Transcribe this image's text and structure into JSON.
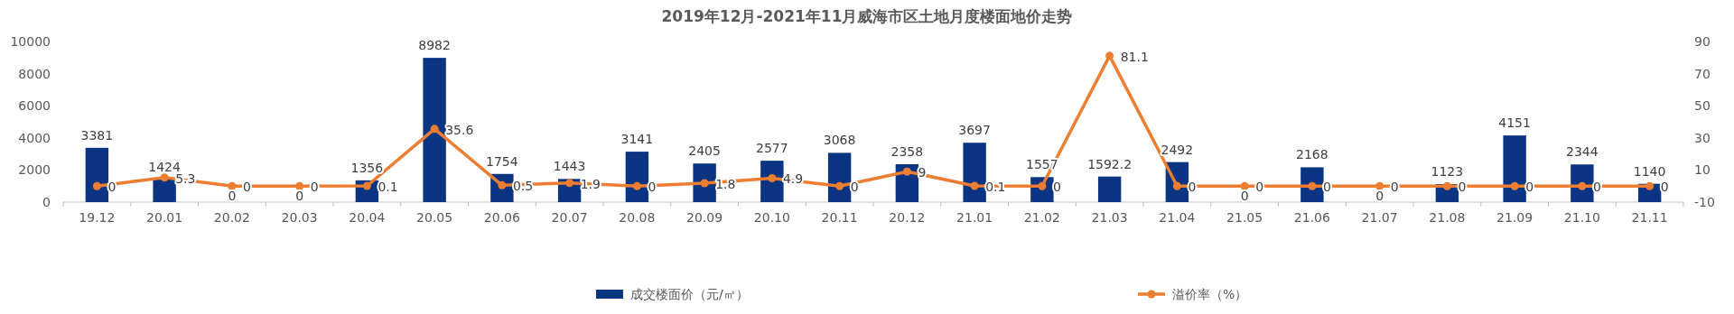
{
  "chart_data": {
    "type": "bar",
    "title": "2019年12月-2021年11月威海市区土地月度楼面地价走势",
    "categories": [
      "19.12",
      "20.01",
      "20.02",
      "20.03",
      "20.04",
      "20.05",
      "20.06",
      "20.07",
      "20.08",
      "20.09",
      "20.10",
      "20.11",
      "20.12",
      "21.01",
      "21.02",
      "21.03",
      "21.04",
      "21.05",
      "21.06",
      "21.07",
      "21.08",
      "21.09",
      "21.10",
      "21.11"
    ],
    "series": [
      {
        "name": "成交楼面价（元/㎡）",
        "color": "#0b3483",
        "values": [
          3381,
          1424,
          0,
          0,
          1356,
          8982,
          1754,
          1443,
          3141,
          2405,
          2577,
          3068,
          2358,
          3697,
          1557,
          1592.2,
          2492,
          0,
          2168,
          0,
          1123,
          4151,
          2344,
          1140
        ]
      },
      {
        "name": "溢价率（%）",
        "type": "line",
        "axis": "y2",
        "color": "#ed7d31",
        "marker": "circle",
        "values": [
          0,
          5.3,
          0,
          0,
          0.1,
          35.6,
          0.5,
          1.9,
          0,
          1.8,
          4.9,
          0,
          9,
          0.1,
          0,
          81.1,
          0,
          0,
          0,
          0,
          0,
          0,
          0,
          0
        ]
      }
    ],
    "ylim": [
      0,
      10000
    ],
    "yticks": [
      0,
      2000,
      4000,
      6000,
      8000,
      10000
    ],
    "y2lim": [
      -10,
      90
    ],
    "y2ticks": [
      -10,
      10,
      30,
      50,
      70,
      90
    ],
    "data_labels": true,
    "legend": "bottom",
    "grid": false
  }
}
